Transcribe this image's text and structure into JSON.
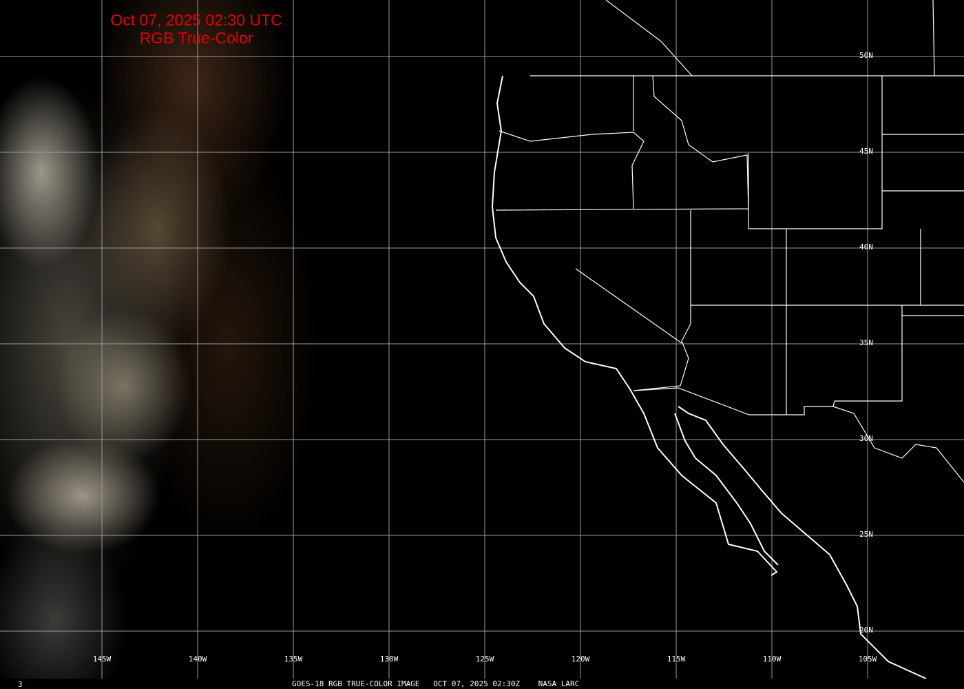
{
  "title": {
    "line1": "Oct 07, 2025 02:30 UTC",
    "line2": "RGB True-Color",
    "color": "#e00000"
  },
  "longitude_labels": [
    "145W",
    "140W",
    "135W",
    "130W",
    "125W",
    "120W",
    "115W",
    "110W",
    "105W"
  ],
  "latitude_labels": [
    "50N",
    "45N",
    "40N",
    "35N",
    "30N",
    "25N",
    "20N"
  ],
  "footer": {
    "frame_number": "3",
    "caption": "GOES-18 RGB TRUE-COLOR IMAGE   OCT 07, 2025 02:30Z    NASA LARC"
  },
  "colors": {
    "grid": "#9a9a9a",
    "coastline": "#ffffff",
    "background": "#000000"
  }
}
